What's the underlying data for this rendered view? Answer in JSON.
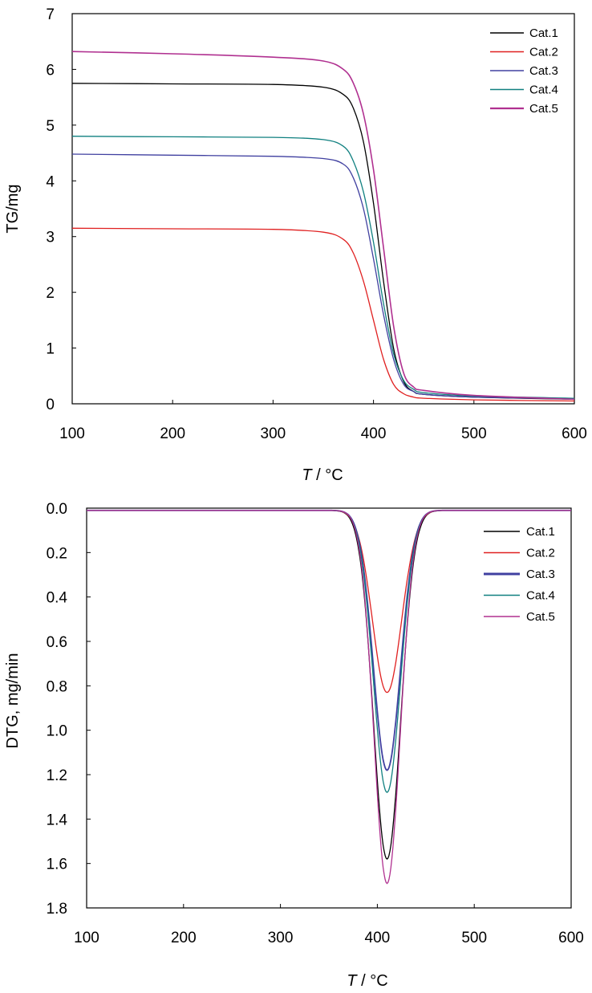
{
  "colors": {
    "Cat.1": "#000000",
    "Cat.2": "#e02020",
    "Cat.3": "#4040a0",
    "Cat.4": "#108080",
    "Cat.5": "#b03090"
  },
  "chart_data": [
    {
      "type": "line",
      "title": "",
      "xlabel_italic": "T",
      "xlabel_rest": " / °C",
      "ylabel": "TG/mg",
      "xlim": [
        100,
        600
      ],
      "ylim": [
        0,
        7
      ],
      "xticks": [
        "100",
        "200",
        "300",
        "400",
        "500",
        "600"
      ],
      "yticks": [
        "0",
        "1",
        "2",
        "3",
        "4",
        "5",
        "6",
        "7"
      ],
      "legend_position": "top-right",
      "series": [
        {
          "name": "Cat.1",
          "x": [
            100,
            200,
            300,
            350,
            370,
            380,
            390,
            400,
            410,
            420,
            430,
            440,
            450,
            500,
            600
          ],
          "y": [
            5.75,
            5.74,
            5.73,
            5.68,
            5.55,
            5.3,
            4.7,
            3.6,
            2.2,
            1.0,
            0.4,
            0.22,
            0.17,
            0.12,
            0.08
          ]
        },
        {
          "name": "Cat.2",
          "x": [
            100,
            200,
            300,
            350,
            370,
            380,
            390,
            400,
            410,
            420,
            430,
            440,
            450,
            500,
            600
          ],
          "y": [
            3.15,
            3.14,
            3.13,
            3.08,
            2.95,
            2.7,
            2.2,
            1.5,
            0.8,
            0.35,
            0.18,
            0.12,
            0.1,
            0.07,
            0.05
          ]
        },
        {
          "name": "Cat.3",
          "x": [
            100,
            200,
            300,
            350,
            370,
            380,
            390,
            400,
            410,
            420,
            430,
            440,
            450,
            500,
            600
          ],
          "y": [
            4.48,
            4.46,
            4.44,
            4.4,
            4.3,
            4.05,
            3.5,
            2.6,
            1.6,
            0.8,
            0.35,
            0.22,
            0.17,
            0.12,
            0.09
          ]
        },
        {
          "name": "Cat.4",
          "x": [
            100,
            200,
            300,
            350,
            370,
            380,
            390,
            400,
            410,
            420,
            430,
            440,
            450,
            500,
            600
          ],
          "y": [
            4.8,
            4.79,
            4.78,
            4.74,
            4.62,
            4.35,
            3.8,
            2.9,
            1.8,
            0.9,
            0.42,
            0.26,
            0.2,
            0.14,
            0.1
          ]
        },
        {
          "name": "Cat.5",
          "x": [
            100,
            200,
            300,
            350,
            370,
            380,
            390,
            400,
            410,
            420,
            430,
            440,
            450,
            500,
            600
          ],
          "y": [
            6.32,
            6.28,
            6.22,
            6.15,
            6.0,
            5.75,
            5.2,
            4.2,
            2.8,
            1.4,
            0.55,
            0.3,
            0.24,
            0.15,
            0.08
          ]
        }
      ]
    },
    {
      "type": "line",
      "title": "",
      "xlabel_italic": "T",
      "xlabel_rest": " / °C",
      "ylabel": "DTG, mg/min",
      "xlim": [
        100,
        600
      ],
      "ylim": [
        0,
        1.8
      ],
      "y_inverted": true,
      "xticks": [
        "100",
        "200",
        "300",
        "400",
        "500",
        "600"
      ],
      "yticks": [
        "0.0",
        "0.2",
        "0.4",
        "0.6",
        "0.8",
        "1.0",
        "1.2",
        "1.4",
        "1.6",
        "1.8"
      ],
      "legend_position": "top-right",
      "series": [
        {
          "name": "Cat.1",
          "peak_x": 410,
          "peak_y": 1.57,
          "width": 14
        },
        {
          "name": "Cat.2",
          "peak_x": 410,
          "peak_y": 0.82,
          "width": 15
        },
        {
          "name": "Cat.3",
          "peak_x": 410,
          "peak_y": 1.17,
          "width": 14
        },
        {
          "name": "Cat.4",
          "peak_x": 410,
          "peak_y": 1.27,
          "width": 14
        },
        {
          "name": "Cat.5",
          "peak_x": 410,
          "peak_y": 1.68,
          "width": 13.5
        }
      ]
    }
  ]
}
